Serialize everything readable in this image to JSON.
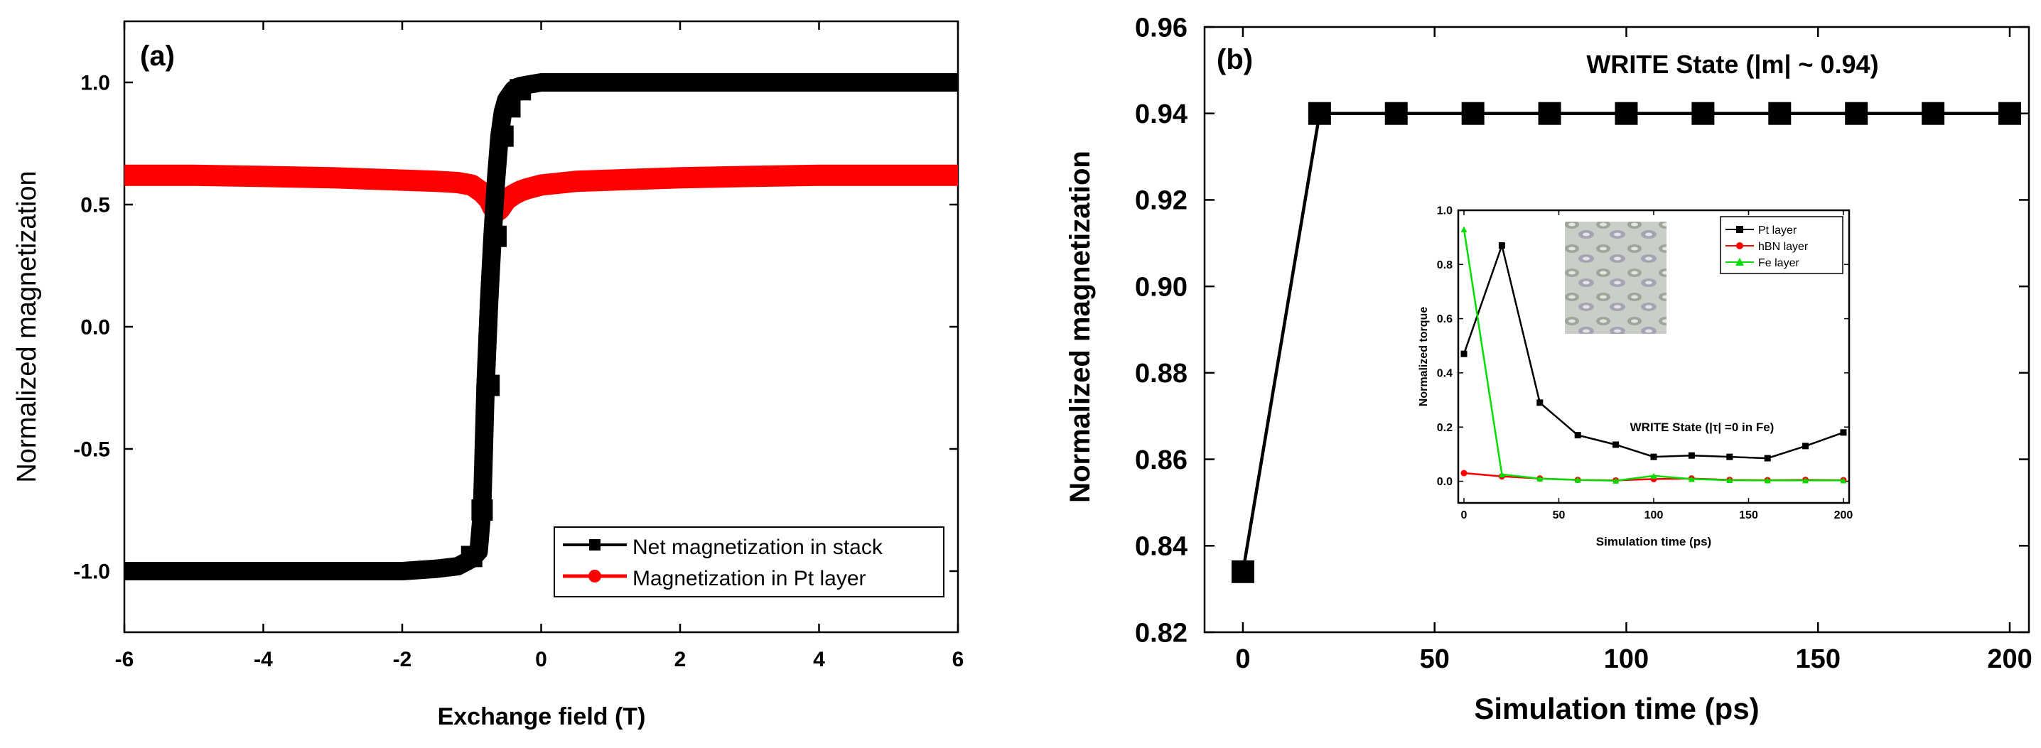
{
  "chart_data": [
    {
      "type": "line",
      "panel_label": "(a)",
      "xlabel": "Exchange field (T)",
      "ylabel": "Normalized magnetization",
      "xlim": [
        -6,
        6
      ],
      "ylim": [
        -1.25,
        1.25
      ],
      "xticks": [
        -6,
        -4,
        -2,
        0,
        2,
        4,
        6
      ],
      "xtick_labels": [
        "-6",
        "-4",
        "-2",
        "0",
        "2",
        "4",
        "6"
      ],
      "yticks": [
        -1.0,
        -0.5,
        0.0,
        0.5,
        1.0
      ],
      "ytick_labels": [
        "-1.0",
        "-0.5",
        "0.0",
        "0.5",
        "1.0"
      ],
      "legend_position": "bottom-right",
      "series": [
        {
          "name": "Net magnetization in stack",
          "color": "#000000",
          "marker": "square",
          "x": [
            -6,
            -5.5,
            -5,
            -4.5,
            -4,
            -3.5,
            -3,
            -2.5,
            -2,
            -1.5,
            -1.2,
            -1.0,
            -0.9,
            -0.85,
            -0.8,
            -0.75,
            -0.7,
            -0.65,
            -0.6,
            -0.55,
            -0.5,
            -0.45,
            -0.4,
            -0.35,
            -0.3,
            -0.2,
            -0.1,
            0,
            0.5,
            1,
            2,
            3,
            4,
            5,
            6
          ],
          "y": [
            -1.0,
            -1.0,
            -1.0,
            -1.0,
            -1.0,
            -1.0,
            -1.0,
            -1.0,
            -1.0,
            -0.99,
            -0.98,
            -0.95,
            -0.92,
            -0.75,
            -0.24,
            0.1,
            0.37,
            0.6,
            0.78,
            0.88,
            0.93,
            0.95,
            0.97,
            0.98,
            0.985,
            0.99,
            0.995,
            1.0,
            1.0,
            1.0,
            1.0,
            1.0,
            1.0,
            1.0,
            1.0
          ],
          "marker_x": [
            -1.0,
            -0.85,
            -0.75,
            -0.65,
            -0.55,
            -0.45,
            -0.3
          ],
          "marker_y": [
            -0.94,
            -0.75,
            -0.24,
            0.37,
            0.78,
            0.9,
            0.97
          ]
        },
        {
          "name": "Magnetization in Pt layer",
          "color": "#ff0000",
          "marker": "circle",
          "x": [
            -6,
            -5,
            -4,
            -3,
            -2,
            -1.5,
            -1.2,
            -1.0,
            -0.85,
            -0.75,
            -0.7,
            -0.65,
            -0.6,
            -0.55,
            -0.5,
            -0.4,
            -0.3,
            -0.2,
            0,
            0.5,
            1,
            2,
            3,
            4,
            5,
            6
          ],
          "y": [
            0.62,
            0.62,
            0.615,
            0.61,
            0.6,
            0.595,
            0.59,
            0.58,
            0.55,
            0.52,
            0.49,
            0.47,
            0.48,
            0.5,
            0.52,
            0.54,
            0.555,
            0.565,
            0.58,
            0.595,
            0.6,
            0.61,
            0.615,
            0.62,
            0.62,
            0.62
          ]
        }
      ]
    },
    {
      "type": "line",
      "panel_label": "(b)",
      "annotation": "WRITE State (|m| ~ 0.94)",
      "xlabel": "Simulation time (ps)",
      "ylabel": "Normalized magnetization",
      "xlim": [
        -10,
        205
      ],
      "ylim": [
        0.82,
        0.96
      ],
      "xticks": [
        0,
        50,
        100,
        150,
        200
      ],
      "xtick_labels": [
        "0",
        "50",
        "100",
        "150",
        "200"
      ],
      "yticks": [
        0.82,
        0.84,
        0.86,
        0.88,
        0.9,
        0.92,
        0.94,
        0.96
      ],
      "ytick_labels": [
        "0.82",
        "0.84",
        "0.86",
        "0.88",
        "0.90",
        "0.92",
        "0.94",
        "0.96"
      ],
      "series": [
        {
          "name": "Normalized magnetization",
          "color": "#000000",
          "marker": "square",
          "x": [
            0,
            20,
            40,
            60,
            80,
            100,
            120,
            140,
            160,
            180,
            200
          ],
          "y": [
            0.834,
            0.94,
            0.94,
            0.94,
            0.94,
            0.94,
            0.94,
            0.94,
            0.94,
            0.94,
            0.94
          ]
        }
      ],
      "inset": {
        "type": "line",
        "annotation": "WRITE State (|τ| =0 in Fe)",
        "xlabel": "Simulation time (ps)",
        "ylabel": "Normalized torque",
        "xlim": [
          -3,
          203
        ],
        "ylim": [
          -0.08,
          1.0
        ],
        "xticks": [
          0,
          50,
          100,
          150,
          200
        ],
        "xtick_labels": [
          "0",
          "50",
          "100",
          "150",
          "200"
        ],
        "yticks": [
          0.0,
          0.2,
          0.4,
          0.6,
          0.8,
          1.0
        ],
        "ytick_labels": [
          "0.0",
          "0.2",
          "0.4",
          "0.6",
          "0.8",
          "1.0"
        ],
        "legend_position": "top-right",
        "series": [
          {
            "name": "Pt layer",
            "color": "#000000",
            "marker": "square",
            "x": [
              0,
              20,
              40,
              60,
              80,
              100,
              120,
              140,
              160,
              180,
              200
            ],
            "y": [
              0.47,
              0.87,
              0.29,
              0.17,
              0.135,
              0.09,
              0.095,
              0.09,
              0.085,
              0.13,
              0.18
            ]
          },
          {
            "name": "hBN layer",
            "color": "#ff0000",
            "marker": "circle",
            "x": [
              0,
              20,
              40,
              60,
              80,
              100,
              120,
              140,
              160,
              180,
              200
            ],
            "y": [
              0.03,
              0.018,
              0.01,
              0.005,
              0.003,
              0.008,
              0.01,
              0.005,
              0.004,
              0.005,
              0.004
            ]
          },
          {
            "name": "Fe layer",
            "color": "#00dd00",
            "marker": "triangle",
            "x": [
              0,
              20,
              40,
              60,
              80,
              100,
              120,
              140,
              160,
              180,
              200
            ],
            "y": [
              0.93,
              0.025,
              0.01,
              0.005,
              0.002,
              0.02,
              0.008,
              0.004,
              0.003,
              0.003,
              0.003
            ]
          }
        ]
      }
    }
  ]
}
